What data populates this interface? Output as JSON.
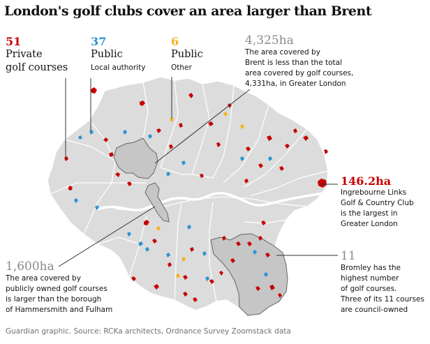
{
  "title": "London's golf clubs cover an area larger than Brent",
  "colors": {
    "private": "#c70000",
    "public_la": "#2a94d4",
    "public_other": "#f2b51d",
    "land": "#dcdcdc",
    "highlight": "#c6c6c6",
    "border": "#ffffff",
    "leader": "#333333"
  },
  "legend": {
    "private": {
      "value": "51",
      "label": "Private",
      "sub": "golf courses"
    },
    "public_la": {
      "value": "37",
      "label": "Public",
      "sub": "Local authority"
    },
    "public_other": {
      "value": "6",
      "label": "Public",
      "sub": "Other"
    }
  },
  "annotations": {
    "brent": {
      "value": "4,325ha",
      "lines": [
        "The area covered by",
        "Brent is less than the total",
        "area covered by golf courses,",
        "4,331ha, in Greater London"
      ]
    },
    "ingrebourne": {
      "value": "146.2ha",
      "lines": [
        "Ingrebourne Links",
        "Golf & Country Club",
        "is the largest in",
        "Greater London"
      ]
    },
    "bromley": {
      "value": "11",
      "lines": [
        "Bromley has the",
        "highest number",
        "of golf courses.",
        "Three of its 11 courses",
        "are council-owned"
      ]
    },
    "hammersmith": {
      "value": "1,600ha",
      "lines": [
        "The area covered by",
        "publicly owned golf courses",
        "is larger than the borough",
        "of Hammersmith and Fulham"
      ]
    }
  },
  "source": "Guardian graphic. Source: RCKa architects, Ordnance Survey Zoomstack data"
}
